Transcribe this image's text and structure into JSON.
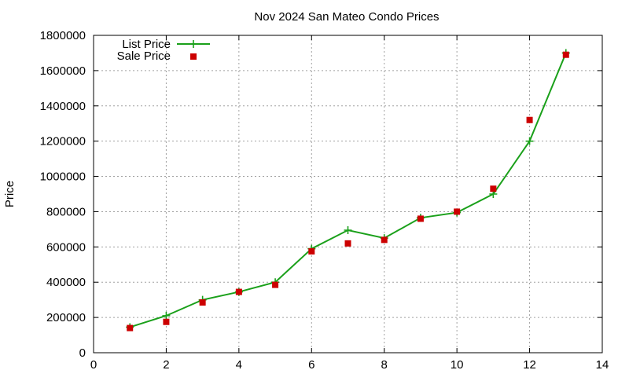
{
  "chart_data": {
    "type": "line",
    "title": "Nov 2024 San Mateo Condo Prices",
    "xlabel": "",
    "ylabel": "Price",
    "xlim": [
      0,
      14
    ],
    "ylim": [
      0,
      1800000
    ],
    "xticks": [
      0,
      2,
      4,
      6,
      8,
      10,
      12,
      14
    ],
    "yticks": [
      0,
      200000,
      400000,
      600000,
      800000,
      1000000,
      1200000,
      1400000,
      1600000,
      1800000
    ],
    "grid": true,
    "legend_position": "top-left",
    "series": [
      {
        "name": "List Price",
        "style": "line-with-crosses",
        "color": "#1aa01a",
        "x": [
          1,
          2,
          3,
          4,
          5,
          6,
          7,
          8,
          9,
          10,
          11,
          12,
          13
        ],
        "y": [
          145000,
          210000,
          300000,
          345000,
          400000,
          590000,
          695000,
          650000,
          765000,
          795000,
          900000,
          1200000,
          1700000
        ]
      },
      {
        "name": "Sale Price",
        "style": "points-squares",
        "color": "#cc0000",
        "x": [
          1,
          2,
          3,
          4,
          5,
          6,
          7,
          8,
          9,
          10,
          11,
          12,
          13
        ],
        "y": [
          140000,
          175000,
          285000,
          345000,
          385000,
          575000,
          620000,
          640000,
          760000,
          800000,
          930000,
          1320000,
          1690000
        ]
      }
    ]
  }
}
